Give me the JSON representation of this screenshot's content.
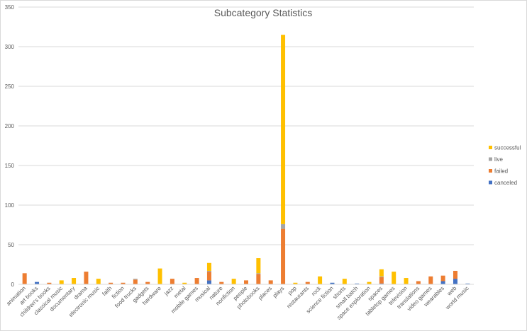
{
  "chart_data": {
    "type": "bar",
    "stacked": true,
    "title": "Subcategory Statistics",
    "xlabel": "",
    "ylabel": "",
    "ylim": [
      0,
      350
    ],
    "yticks": [
      0,
      50,
      100,
      150,
      200,
      250,
      300,
      350
    ],
    "grid": true,
    "legend_position": "right",
    "categories": [
      "animation",
      "art books",
      "children's books",
      "classical music",
      "documentary",
      "drama",
      "electronic music",
      "faith",
      "fiction",
      "food trucks",
      "gadgets",
      "hardware",
      "jazz",
      "metal",
      "mobile games",
      "musical",
      "nature",
      "nonfiction",
      "people",
      "photobooks",
      "places",
      "plays",
      "pop",
      "restaurants",
      "rock",
      "science fiction",
      "shorts",
      "small batch",
      "space exploration",
      "spaces",
      "tabletop games",
      "television",
      "translations",
      "video games",
      "wearables",
      "web",
      "world music"
    ],
    "series": [
      {
        "name": "canceled",
        "color": "#4472C4",
        "values": [
          0,
          3,
          0,
          0,
          0,
          0,
          0,
          0,
          0,
          0,
          0,
          0,
          0,
          0,
          0,
          5,
          0,
          0,
          0,
          0,
          0,
          0,
          0,
          0,
          0,
          2,
          0,
          1,
          0,
          1,
          0,
          0,
          0,
          0,
          4,
          7,
          1
        ]
      },
      {
        "name": "failed",
        "color": "#ED7D31",
        "values": [
          14,
          0,
          2,
          0,
          0,
          16,
          0,
          2,
          2,
          6,
          3,
          0,
          7,
          0,
          8,
          11,
          3,
          0,
          5,
          13,
          5,
          70,
          0,
          3,
          0,
          0,
          0,
          0,
          0,
          8,
          0,
          0,
          4,
          10,
          7,
          10,
          0
        ]
      },
      {
        "name": "live",
        "color": "#A5A5A5",
        "values": [
          0,
          0,
          0,
          0,
          0,
          0,
          0,
          0,
          0,
          1,
          0,
          0,
          0,
          0,
          0,
          1,
          0,
          0,
          0,
          1,
          0,
          6,
          0,
          0,
          0,
          0,
          0,
          0,
          0,
          1,
          0,
          0,
          0,
          0,
          0,
          0,
          0
        ]
      },
      {
        "name": "successful",
        "color": "#FFC000",
        "values": [
          0,
          0,
          0,
          5,
          8,
          0,
          7,
          0,
          0,
          0,
          0,
          20,
          0,
          2,
          0,
          10,
          0,
          7,
          0,
          19,
          0,
          239,
          2,
          0,
          10,
          0,
          7,
          0,
          3,
          9,
          16,
          8,
          0,
          0,
          0,
          0,
          0
        ]
      }
    ]
  }
}
